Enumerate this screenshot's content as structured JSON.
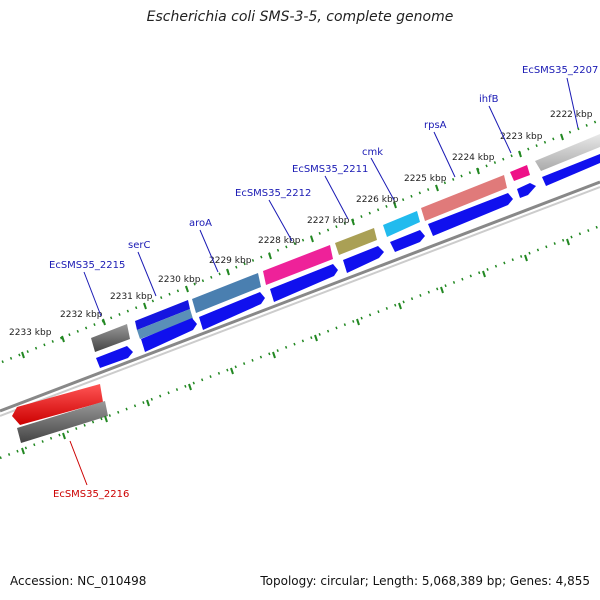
{
  "title": "Escherichia coli SMS-3-5, complete genome",
  "footer": {
    "accession": "Accession: NC_010498",
    "topology": "Topology: circular; Length: 5,068,389 bp; Genes: 4,855"
  },
  "colors": {
    "label_blue": "#1a1ab4",
    "label_red": "#cc0000",
    "cds_blue": "#1010ee",
    "tick_green": "#228822",
    "backbone": "#999999"
  },
  "kbp_ticks": [
    "2222 kbp",
    "2223 kbp",
    "2224 kbp",
    "2225 kbp",
    "2226 kbp",
    "2227 kbp",
    "2228 kbp",
    "2229 kbp",
    "2230 kbp",
    "2231 kbp",
    "2232 kbp",
    "2233 kbp"
  ],
  "genes": [
    {
      "name": "EcSMS35_2207",
      "color": "#1a1ab4"
    },
    {
      "name": "ihfB",
      "color": "#1a1ab4"
    },
    {
      "name": "rpsA",
      "color": "#1a1ab4"
    },
    {
      "name": "cmk",
      "color": "#1a1ab4"
    },
    {
      "name": "EcSMS35_2211",
      "color": "#1a1ab4"
    },
    {
      "name": "EcSMS35_2212",
      "color": "#1a1ab4"
    },
    {
      "name": "aroA",
      "color": "#1a1ab4"
    },
    {
      "name": "serC",
      "color": "#1a1ab4"
    },
    {
      "name": "EcSMS35_2215",
      "color": "#1a1ab4"
    },
    {
      "name": "EcSMS35_2216",
      "color": "#cc0000"
    }
  ]
}
